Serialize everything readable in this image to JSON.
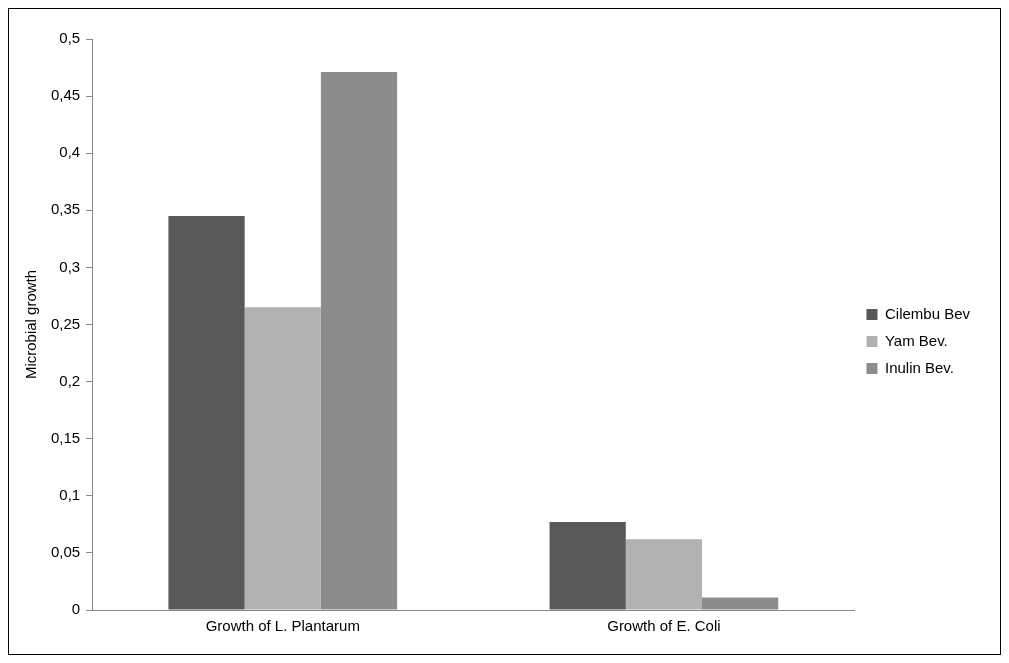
{
  "chart_data": {
    "type": "bar",
    "ylabel": "Microbial growth",
    "categories": [
      "Growth of L. Plantarum",
      "Growth of E. Coli"
    ],
    "series": [
      {
        "name": "Cilembu Bev",
        "color": "#595959",
        "values": [
          0.345,
          0.077
        ]
      },
      {
        "name": "Yam Bev.",
        "color": "#b2b2b2",
        "values": [
          0.265,
          0.062
        ]
      },
      {
        "name": "Inulin Bev.",
        "color": "#8c8c8c",
        "values": [
          0.471,
          0.011
        ]
      }
    ],
    "ylim": [
      0,
      0.5
    ],
    "yticks": [
      0,
      {
        "value": 0.05,
        "label": "0,05"
      },
      {
        "value": 0.1,
        "label": "0,1"
      },
      {
        "value": 0.15,
        "label": "0,15"
      },
      {
        "value": 0.2,
        "label": "0,2"
      },
      {
        "value": 0.25,
        "label": "0,25"
      },
      {
        "value": 0.3,
        "label": "0,3"
      },
      {
        "value": 0.35,
        "label": "0,35"
      },
      {
        "value": 0.4,
        "label": "0,4"
      },
      {
        "value": 0.45,
        "label": "0,45"
      },
      {
        "value": 0.5,
        "label": "0,5"
      }
    ],
    "grid": false,
    "legend": "right"
  }
}
